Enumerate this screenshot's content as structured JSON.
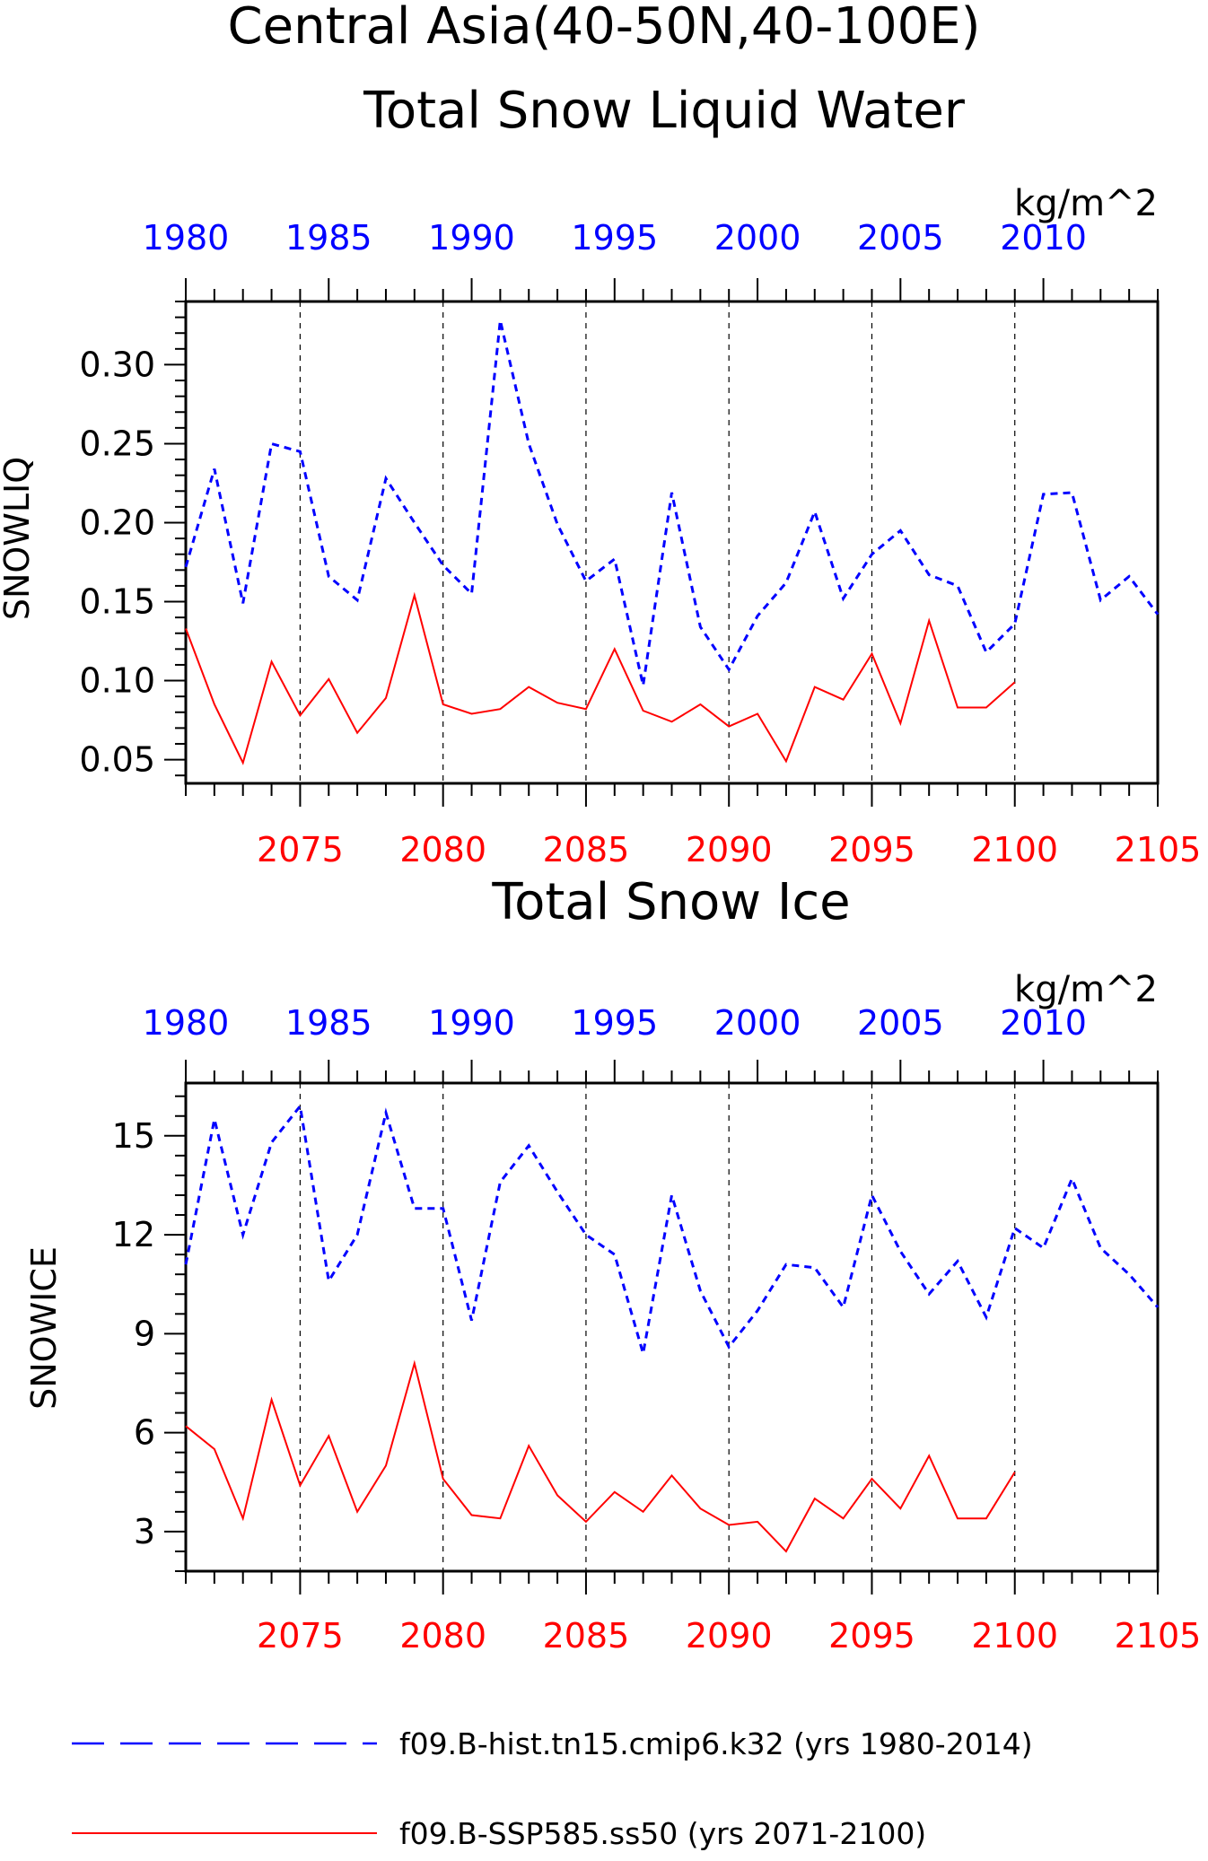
{
  "title_line1": "Central Asia(40-50N,40-100E)",
  "colors": {
    "hist": "#0000ff",
    "ssp": "#ff0000",
    "axis": "#000000"
  },
  "chart_data": [
    {
      "type": "line",
      "title": "Total Snow Liquid Water",
      "units": "kg/m^2",
      "ylabel": "SNOWLIQ",
      "ylim": [
        0.035,
        0.34
      ],
      "yticks": [
        0.05,
        0.1,
        0.15,
        0.2,
        0.25,
        0.3
      ],
      "ytick_labels": [
        "0.05",
        "0.10",
        "0.15",
        "0.20",
        "0.25",
        "0.30"
      ],
      "x_top": {
        "lim": [
          1980,
          2014
        ],
        "ticks": [
          1980,
          1985,
          1990,
          1995,
          2000,
          2005,
          2010
        ],
        "labels": [
          "1980",
          "1985",
          "1990",
          "1995",
          "2000",
          "2005",
          "2010"
        ]
      },
      "x_bottom": {
        "lim": [
          2071,
          2105
        ],
        "ticks": [
          2075,
          2080,
          2085,
          2090,
          2095,
          2100,
          2105
        ],
        "labels": [
          "2075",
          "2080",
          "2085",
          "2090",
          "2095",
          "2100",
          "2105"
        ]
      },
      "grid": "vertical dashed",
      "series": [
        {
          "name": "f09.B-hist.tn15.cmip6.k32 (yrs 1980-2014)",
          "axis": "top",
          "style": "dashed",
          "color": "#0000ff",
          "x": [
            1980,
            1981,
            1982,
            1983,
            1984,
            1985,
            1986,
            1987,
            1988,
            1989,
            1990,
            1991,
            1992,
            1993,
            1994,
            1995,
            1996,
            1997,
            1998,
            1999,
            2000,
            2001,
            2002,
            2003,
            2004,
            2005,
            2006,
            2007,
            2008,
            2009,
            2010,
            2011,
            2012,
            2013,
            2014
          ],
          "values": [
            0.172,
            0.234,
            0.149,
            0.25,
            0.245,
            0.166,
            0.151,
            0.228,
            0.2,
            0.173,
            0.155,
            0.328,
            0.25,
            0.199,
            0.163,
            0.177,
            0.097,
            0.219,
            0.134,
            0.107,
            0.141,
            0.162,
            0.207,
            0.152,
            0.18,
            0.195,
            0.167,
            0.16,
            0.118,
            0.136,
            0.218,
            0.219,
            0.151,
            0.166,
            0.142
          ]
        },
        {
          "name": "f09.B-SSP585.ss50 (yrs 2071-2100)",
          "axis": "bottom",
          "style": "solid",
          "color": "#ff0000",
          "x": [
            2071,
            2072,
            2073,
            2074,
            2075,
            2076,
            2077,
            2078,
            2079,
            2080,
            2081,
            2082,
            2083,
            2084,
            2085,
            2086,
            2087,
            2088,
            2089,
            2090,
            2091,
            2092,
            2093,
            2094,
            2095,
            2096,
            2097,
            2098,
            2099,
            2100
          ],
          "values": [
            0.133,
            0.085,
            0.048,
            0.112,
            0.078,
            0.101,
            0.067,
            0.089,
            0.154,
            0.085,
            0.079,
            0.082,
            0.096,
            0.086,
            0.082,
            0.12,
            0.081,
            0.074,
            0.085,
            0.071,
            0.079,
            0.049,
            0.096,
            0.088,
            0.117,
            0.073,
            0.138,
            0.083,
            0.083,
            0.099
          ]
        }
      ]
    },
    {
      "type": "line",
      "title": "Total Snow Ice",
      "units": "kg/m^2",
      "ylabel": "SNOWICE",
      "ylim": [
        1.8,
        16.6
      ],
      "yticks": [
        3,
        6,
        9,
        12,
        15
      ],
      "ytick_labels": [
        "3",
        "6",
        "9",
        "12",
        "15"
      ],
      "x_top": {
        "lim": [
          1980,
          2014
        ],
        "ticks": [
          1980,
          1985,
          1990,
          1995,
          2000,
          2005,
          2010
        ],
        "labels": [
          "1980",
          "1985",
          "1990",
          "1995",
          "2000",
          "2005",
          "2010"
        ]
      },
      "x_bottom": {
        "lim": [
          2071,
          2105
        ],
        "ticks": [
          2075,
          2080,
          2085,
          2090,
          2095,
          2100,
          2105
        ],
        "labels": [
          "2075",
          "2080",
          "2085",
          "2090",
          "2095",
          "2100",
          "2105"
        ]
      },
      "grid": "vertical dashed",
      "series": [
        {
          "name": "f09.B-hist.tn15.cmip6.k32 (yrs 1980-2014)",
          "axis": "top",
          "style": "dashed",
          "color": "#0000ff",
          "x": [
            1980,
            1981,
            1982,
            1983,
            1984,
            1985,
            1986,
            1987,
            1988,
            1989,
            1990,
            1991,
            1992,
            1993,
            1994,
            1995,
            1996,
            1997,
            1998,
            1999,
            2000,
            2001,
            2002,
            2003,
            2004,
            2005,
            2006,
            2007,
            2008,
            2009,
            2010,
            2011,
            2012,
            2013,
            2014
          ],
          "values": [
            11.1,
            15.5,
            12.0,
            14.8,
            15.9,
            10.6,
            12.0,
            15.7,
            12.8,
            12.8,
            9.4,
            13.6,
            14.7,
            13.3,
            12.0,
            11.4,
            8.4,
            13.2,
            10.3,
            8.6,
            9.7,
            11.1,
            11.0,
            9.8,
            13.2,
            11.5,
            10.2,
            11.2,
            9.5,
            12.2,
            11.6,
            13.7,
            11.6,
            10.8,
            9.8
          ]
        },
        {
          "name": "f09.B-SSP585.ss50 (yrs 2071-2100)",
          "axis": "bottom",
          "style": "solid",
          "color": "#ff0000",
          "x": [
            2071,
            2072,
            2073,
            2074,
            2075,
            2076,
            2077,
            2078,
            2079,
            2080,
            2081,
            2082,
            2083,
            2084,
            2085,
            2086,
            2087,
            2088,
            2089,
            2090,
            2091,
            2092,
            2093,
            2094,
            2095,
            2096,
            2097,
            2098,
            2099,
            2100
          ],
          "values": [
            6.2,
            5.5,
            3.4,
            7.0,
            4.4,
            5.9,
            3.6,
            5.0,
            8.1,
            4.6,
            3.5,
            3.4,
            5.6,
            4.1,
            3.3,
            4.2,
            3.6,
            4.7,
            3.7,
            3.2,
            3.3,
            2.4,
            4.0,
            3.4,
            4.6,
            3.7,
            5.3,
            3.4,
            3.4,
            4.8
          ]
        }
      ]
    }
  ],
  "legend": [
    {
      "label": "f09.B-hist.tn15.cmip6.k32 (yrs 1980-2014)",
      "style": "dashed",
      "color": "#0000ff"
    },
    {
      "label": "f09.B-SSP585.ss50 (yrs 2071-2100)",
      "style": "solid",
      "color": "#ff0000"
    }
  ]
}
